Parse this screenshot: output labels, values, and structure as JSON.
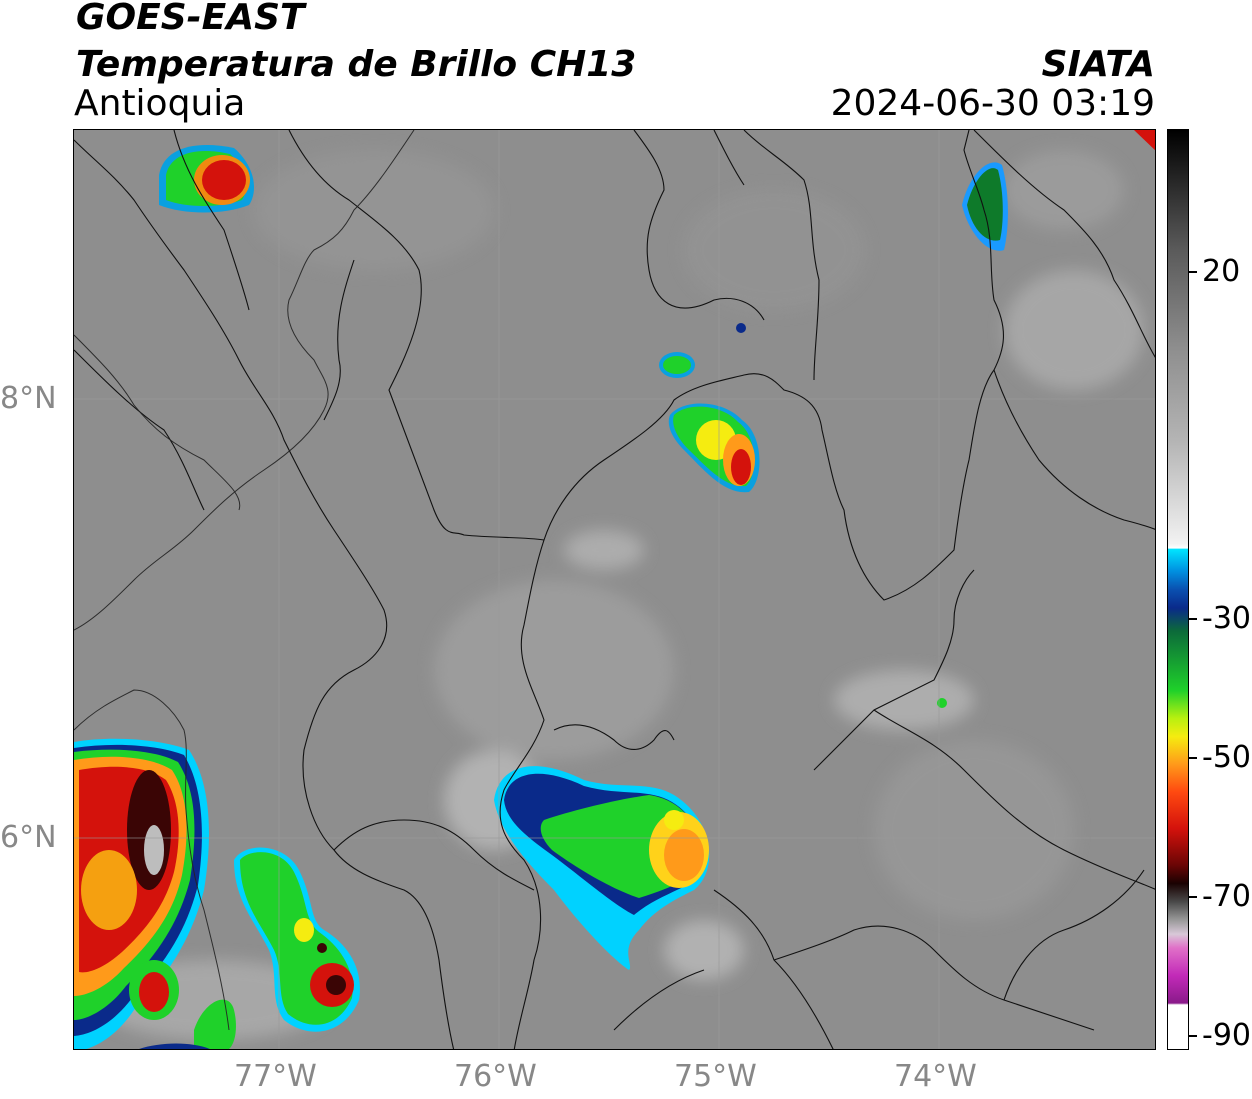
{
  "header": {
    "satellite": "GOES-EAST",
    "product": "Temperatura de Brillo CH13",
    "region": "Antioquia",
    "organization": "SIATA",
    "datetime": "2024-06-30 03:19"
  },
  "map": {
    "lat_ticks": [
      "8°N",
      "6°N"
    ],
    "lon_ticks": [
      "77°W",
      "76°W",
      "75°W",
      "74°W"
    ]
  },
  "colorbar": {
    "ticks": [
      "20",
      "-30",
      "-50",
      "-70",
      "-90"
    ],
    "colors": {
      "warm_gray": "#8f8f8f",
      "light": "#f2f2f2",
      "cyan": "#00e5ff",
      "blue": "#0a2a8a",
      "green": "#1fd12a",
      "yellow": "#f5ec10",
      "orange": "#ff9a1a",
      "red": "#d4120c",
      "dark": "#1a0202",
      "magenta": "#c22ab8"
    }
  }
}
